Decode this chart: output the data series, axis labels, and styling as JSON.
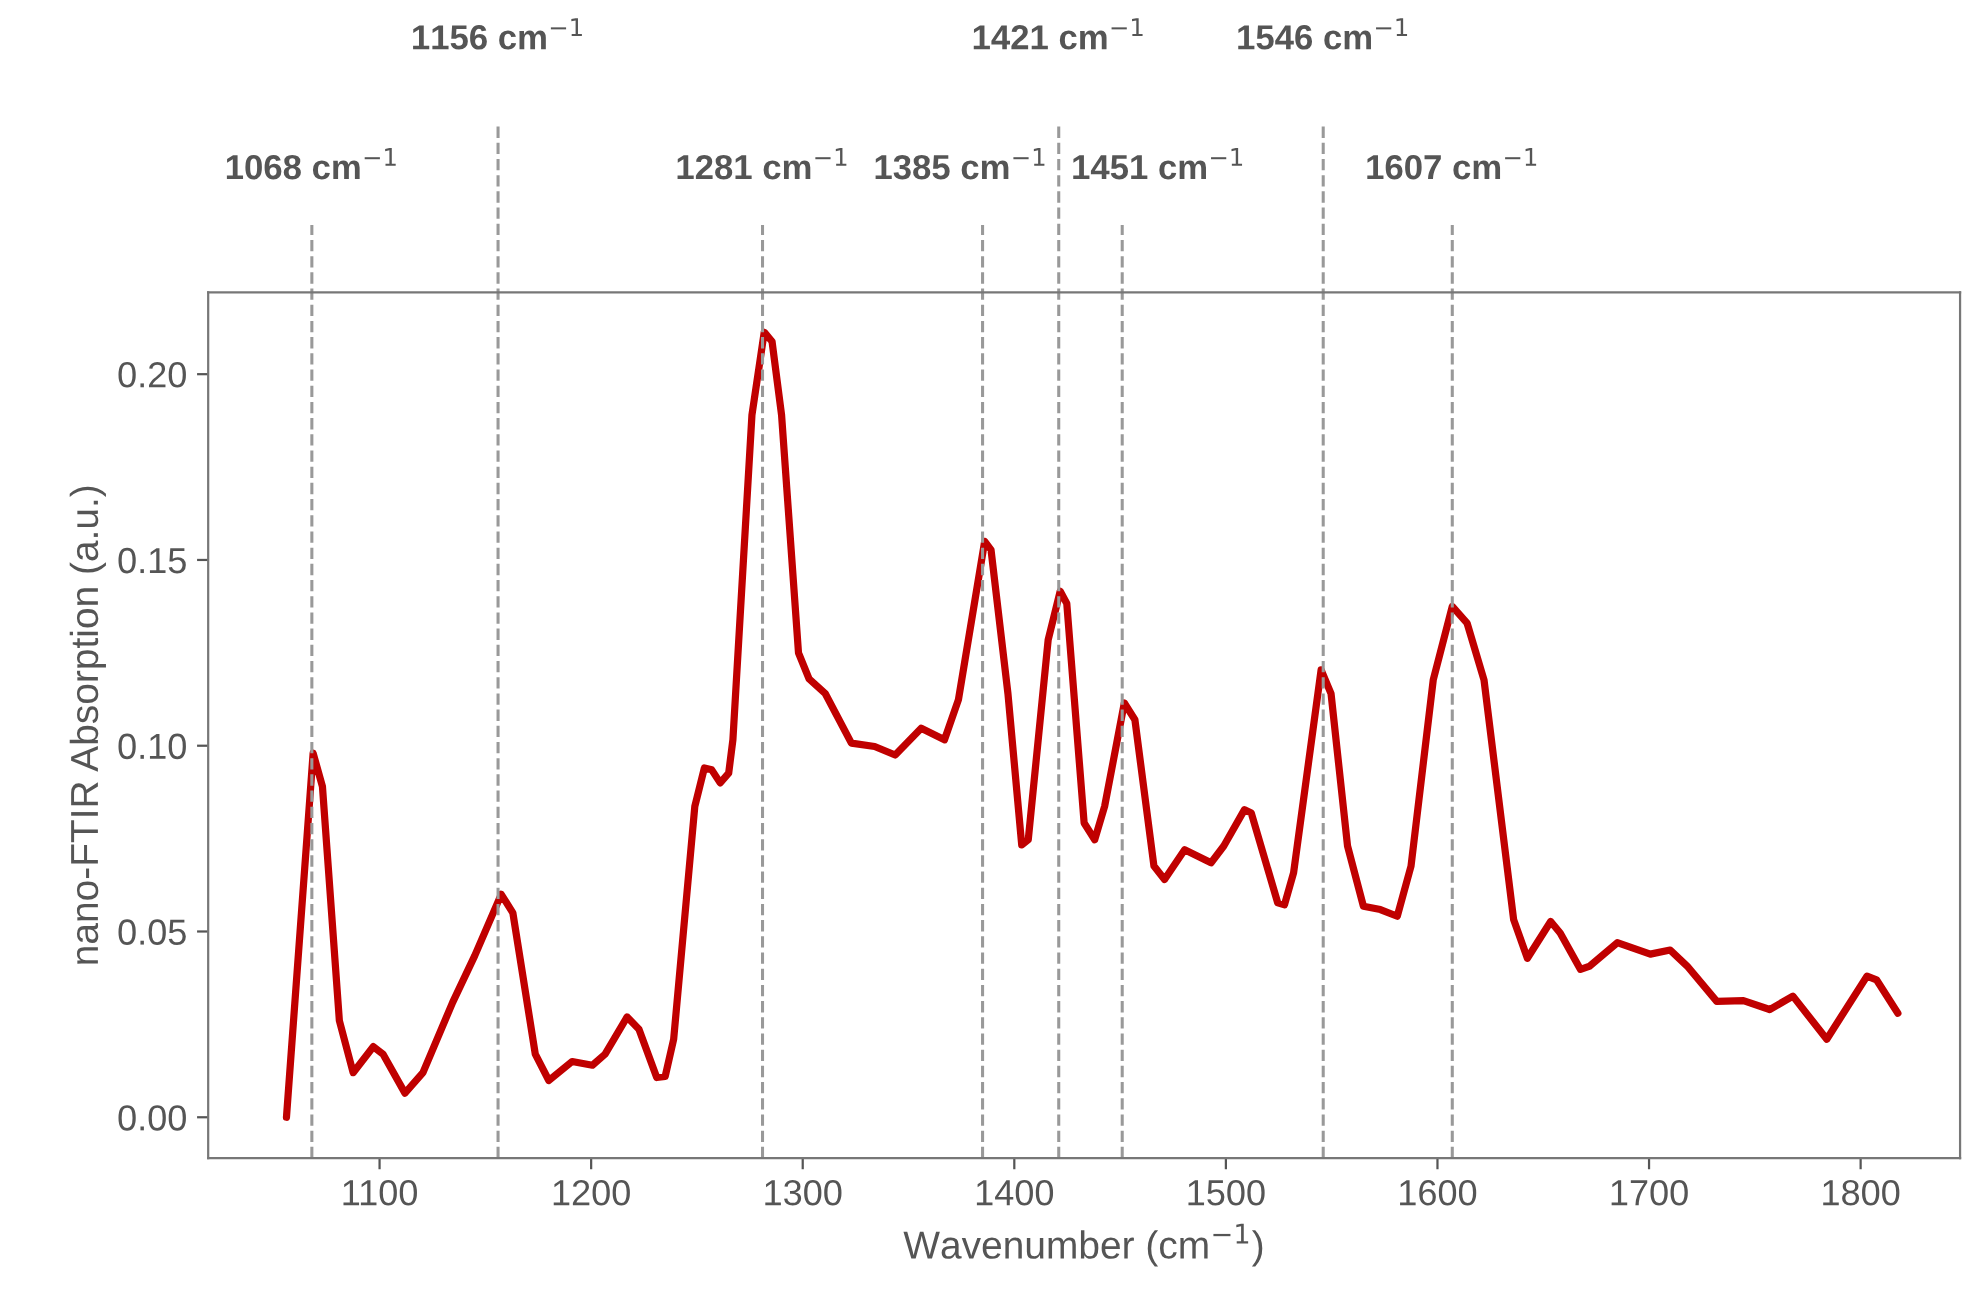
{
  "chart_data": {
    "type": "line",
    "xlabel": "Wavenumber (cm$^{−1}$)",
    "ylabel": "nano-FTIR Absorption (a.u.)",
    "xlim": [
      1019,
      1847
    ],
    "ylim": [
      -0.011,
      0.222
    ],
    "xticks": [
      1100,
      1200,
      1300,
      1400,
      1500,
      1600,
      1700,
      1800
    ],
    "yticks": [
      {
        "value": 0,
        "label": "0.00"
      },
      {
        "value": 0.05,
        "label": "0.05"
      },
      {
        "value": 0.1,
        "label": "0.10"
      },
      {
        "value": 0.15,
        "label": "0.15"
      },
      {
        "value": 0.2,
        "label": "0.20"
      }
    ],
    "grid": false,
    "marker": "none",
    "line_style": "solid",
    "series": [
      {
        "color": "#c00000",
        "x": [
          1056,
          1068.6,
          1073,
          1081,
          1087.5,
          1097,
          1101.6,
          1112,
          1120.5,
          1134.6,
          1145,
          1157.5,
          1163,
          1173.6,
          1180,
          1191,
          1200.6,
          1206.6,
          1217,
          1222.6,
          1231,
          1235,
          1239,
          1249,
          1253.5,
          1257,
          1261,
          1265,
          1267,
          1276,
          1281.8,
          1285.5,
          1290,
          1298,
          1303,
          1310.7,
          1323,
          1334,
          1343.7,
          1356,
          1367,
          1373.6,
          1386,
          1389,
          1397,
          1403.5,
          1406.6,
          1416,
          1421.7,
          1424.8,
          1433,
          1438,
          1442.7,
          1452,
          1457,
          1466,
          1471,
          1480.5,
          1493,
          1499,
          1508.8,
          1512,
          1524.5,
          1527.7,
          1532,
          1545,
          1549.7,
          1557.5,
          1565,
          1573,
          1581,
          1587.5,
          1598,
          1607,
          1614,
          1622,
          1636,
          1642.5,
          1653.5,
          1658,
          1667.6,
          1672,
          1685,
          1700.6,
          1710,
          1718,
          1732,
          1744.6,
          1757,
          1768,
          1784,
          1803,
          1807.5,
          1817.6
        ],
        "values": [
          0,
          0.098,
          0.089,
          0.026,
          0.012,
          0.019,
          0.017,
          0.0065,
          0.012,
          0.031,
          0.0435,
          0.06,
          0.055,
          0.017,
          0.0099,
          0.015,
          0.014,
          0.017,
          0.027,
          0.0237,
          0.0107,
          0.011,
          0.021,
          0.0837,
          0.094,
          0.0935,
          0.09,
          0.0926,
          0.1016,
          0.189,
          0.2113,
          0.2088,
          0.189,
          0.125,
          0.118,
          0.114,
          0.1007,
          0.0998,
          0.0975,
          0.1047,
          0.1016,
          0.1124,
          0.155,
          0.1527,
          0.114,
          0.0733,
          0.0747,
          0.1285,
          0.1416,
          0.1383,
          0.0792,
          0.0747,
          0.0837,
          0.1115,
          0.107,
          0.0676,
          0.064,
          0.072,
          0.0685,
          0.073,
          0.0828,
          0.0819,
          0.0577,
          0.0572,
          0.0658,
          0.1204,
          0.114,
          0.073,
          0.0568,
          0.0559,
          0.0541,
          0.0676,
          0.1177,
          0.1375,
          0.133,
          0.1177,
          0.0532,
          0.0428,
          0.0527,
          0.0496,
          0.0398,
          0.0407,
          0.047,
          0.0439,
          0.045,
          0.0407,
          0.0312,
          0.0314,
          0.029,
          0.0326,
          0.021,
          0.038,
          0.037,
          0.028
        ]
      }
    ],
    "ref_lines": [
      {
        "axis": "x",
        "value": 1068,
        "label": "1068 cm$^{−1}$",
        "color": "#999999",
        "line_style": "dashed"
      },
      {
        "axis": "x",
        "value": 1156,
        "label": "1156 cm$^{−1}$",
        "color": "#999999",
        "line_style": "dashed"
      },
      {
        "axis": "x",
        "value": 1281,
        "label": "1281 cm$^{−1}$",
        "color": "#999999",
        "line_style": "dashed"
      },
      {
        "axis": "x",
        "value": 1385,
        "label": "1385 cm$^{−1}$",
        "color": "#999999",
        "line_style": "dashed"
      },
      {
        "axis": "x",
        "value": 1421,
        "label": "1421 cm$^{−1}$",
        "color": "#999999",
        "line_style": "dashed"
      },
      {
        "axis": "x",
        "value": 1451,
        "label": "1451 cm$^{−1}$",
        "color": "#999999",
        "line_style": "dashed"
      },
      {
        "axis": "x",
        "value": 1546,
        "label": "1546 cm$^{−1}$",
        "color": "#999999",
        "line_style": "dashed"
      },
      {
        "axis": "x",
        "value": 1607,
        "label": "1607 cm$^{−1}$",
        "color": "#999999",
        "line_style": "dashed"
      }
    ]
  }
}
